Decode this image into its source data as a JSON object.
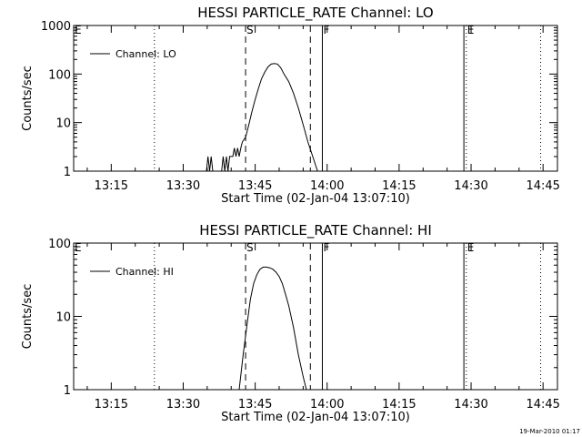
{
  "timestamp": "19-Mar-2010 01:17",
  "chart_data": [
    {
      "type": "line",
      "title": "HESSI PARTICLE_RATE Channel: LO",
      "xlabel": "Start Time (02-Jan-04 13:07:10)",
      "ylabel": "Counts/sec",
      "y_scale": "log",
      "ylim": [
        1,
        1000
      ],
      "y_ticks": [
        "1",
        "10",
        "100",
        "1000"
      ],
      "xlim": [
        "13:07:10",
        "14:48:00"
      ],
      "x_ticks": [
        "13:15",
        "13:30",
        "13:45",
        "14:00",
        "14:15",
        "14:30",
        "14:45"
      ],
      "legend": {
        "position": "top-left",
        "entries": [
          "Channel: LO"
        ]
      },
      "markers": [
        {
          "label": "E",
          "time": "13:07:10",
          "style": "dotted"
        },
        {
          "label": "",
          "time": "13:24:00",
          "style": "dotted"
        },
        {
          "label": "S",
          "time": "13:43:00",
          "style": "dashed"
        },
        {
          "label": "",
          "time": "13:56:30",
          "style": "dashed"
        },
        {
          "label": "F",
          "time": "13:59:00",
          "style": "solid"
        },
        {
          "label": "",
          "time": "14:28:30",
          "style": "solid"
        },
        {
          "label": "E",
          "time": "14:29:00",
          "style": "dotted"
        },
        {
          "label": "",
          "time": "14:44:30",
          "style": "dotted"
        }
      ],
      "series": [
        {
          "name": "Channel: LO",
          "points": [
            [
              "13:34:50",
              1
            ],
            [
              "13:35:10",
              2
            ],
            [
              "13:35:30",
              1
            ],
            [
              "13:35:50",
              2
            ],
            [
              "13:36:10",
              1
            ],
            [
              "13:38:00",
              1
            ],
            [
              "13:38:20",
              2
            ],
            [
              "13:38:40",
              1
            ],
            [
              "13:39:00",
              2
            ],
            [
              "13:39:20",
              1
            ],
            [
              "13:39:40",
              2
            ],
            [
              "13:40:20",
              2
            ],
            [
              "13:40:40",
              3
            ],
            [
              "13:41:00",
              2
            ],
            [
              "13:41:20",
              3
            ],
            [
              "13:41:40",
              2
            ],
            [
              "13:42:00",
              3
            ],
            [
              "13:42:20",
              4
            ],
            [
              "13:43:00",
              5
            ],
            [
              "13:43:40",
              9
            ],
            [
              "13:44:20",
              17
            ],
            [
              "13:45:00",
              30
            ],
            [
              "13:45:40",
              50
            ],
            [
              "13:46:20",
              80
            ],
            [
              "13:47:00",
              110
            ],
            [
              "13:47:40",
              140
            ],
            [
              "13:48:20",
              160
            ],
            [
              "13:49:00",
              165
            ],
            [
              "13:49:40",
              160
            ],
            [
              "13:50:20",
              135
            ],
            [
              "13:51:00",
              100
            ],
            [
              "13:52:00",
              70
            ],
            [
              "13:53:00",
              40
            ],
            [
              "13:54:00",
              20
            ],
            [
              "13:55:00",
              9
            ],
            [
              "13:56:00",
              4
            ],
            [
              "13:57:00",
              2
            ],
            [
              "13:58:00",
              1
            ],
            [
              "13:58:30",
              0.7
            ]
          ]
        }
      ]
    },
    {
      "type": "line",
      "title": "HESSI PARTICLE_RATE Channel: HI",
      "xlabel": "Start Time (02-Jan-04 13:07:10)",
      "ylabel": "Counts/sec",
      "y_scale": "log",
      "ylim": [
        1,
        100
      ],
      "y_ticks": [
        "1",
        "10",
        "100"
      ],
      "xlim": [
        "13:07:10",
        "14:48:00"
      ],
      "x_ticks": [
        "13:15",
        "13:30",
        "13:45",
        "14:00",
        "14:15",
        "14:30",
        "14:45"
      ],
      "legend": {
        "position": "top-left",
        "entries": [
          "Channel: HI"
        ]
      },
      "markers": [
        {
          "label": "E",
          "time": "13:07:10",
          "style": "dotted"
        },
        {
          "label": "",
          "time": "13:24:00",
          "style": "dotted"
        },
        {
          "label": "S",
          "time": "13:43:00",
          "style": "dashed"
        },
        {
          "label": "",
          "time": "13:56:30",
          "style": "dashed"
        },
        {
          "label": "F",
          "time": "13:59:00",
          "style": "solid"
        },
        {
          "label": "",
          "time": "14:28:30",
          "style": "solid"
        },
        {
          "label": "E",
          "time": "14:29:00",
          "style": "dotted"
        },
        {
          "label": "",
          "time": "14:44:30",
          "style": "dotted"
        }
      ],
      "series": [
        {
          "name": "Channel: HI",
          "points": [
            [
              "13:41:20",
              0.8
            ],
            [
              "13:41:40",
              1
            ],
            [
              "13:42:30",
              3
            ],
            [
              "13:43:20",
              8
            ],
            [
              "13:44:00",
              17
            ],
            [
              "13:44:40",
              28
            ],
            [
              "13:45:20",
              37
            ],
            [
              "13:46:00",
              44
            ],
            [
              "13:46:40",
              47
            ],
            [
              "13:47:20",
              47
            ],
            [
              "13:48:00",
              46
            ],
            [
              "13:48:40",
              44
            ],
            [
              "13:49:20",
              40
            ],
            [
              "13:50:00",
              35
            ],
            [
              "13:50:40",
              28
            ],
            [
              "13:51:20",
              20
            ],
            [
              "13:52:00",
              14
            ],
            [
              "13:53:00",
              7
            ],
            [
              "13:54:00",
              3
            ],
            [
              "13:55:00",
              1.5
            ],
            [
              "13:55:40",
              1
            ],
            [
              "13:56:00",
              0.8
            ]
          ]
        }
      ]
    }
  ]
}
